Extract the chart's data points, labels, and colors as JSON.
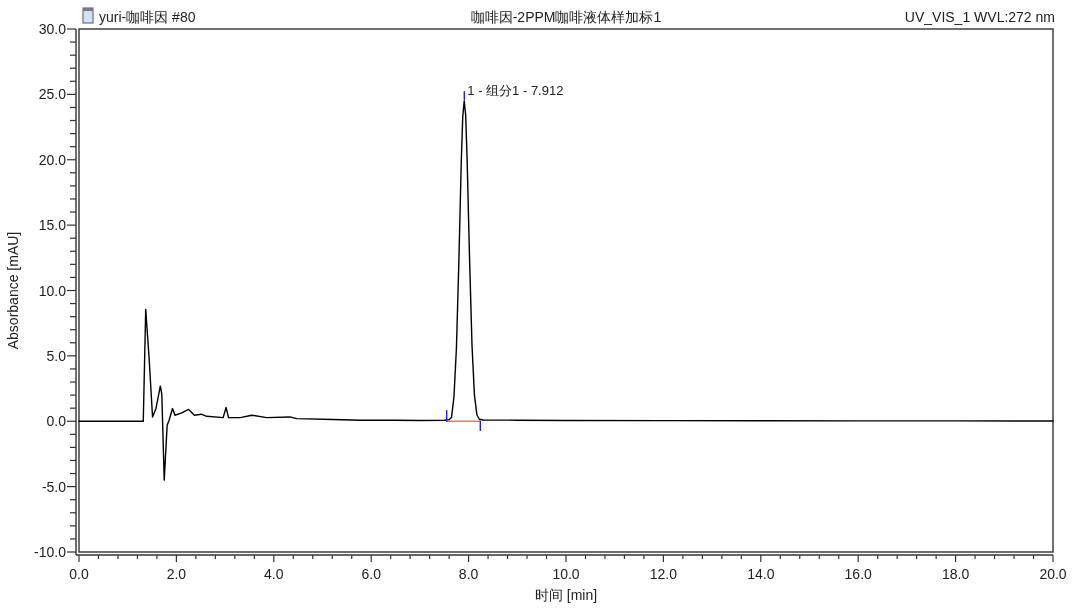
{
  "chart_data": {
    "type": "line",
    "title": "咖啡因-2PPM咖啡液体样加标1",
    "subtitle": "yuri-咖啡因 #80",
    "annotations": [
      "UV_VIS_1 WVL:272 nm",
      {
        "text": "1 - 组分1 - 7.912",
        "x": 7.912,
        "y": 25.0
      }
    ],
    "xlabel": "时间 [min]",
    "ylabel": "Absorbance [mAU]",
    "xlim": [
      0,
      20
    ],
    "ylim": [
      -10,
      30
    ],
    "xticks": [
      {
        "value": 0,
        "label": "0.0"
      },
      {
        "value": 0.4,
        "label": null
      },
      {
        "value": 0.8,
        "label": null
      },
      {
        "value": 1.2,
        "label": null
      },
      {
        "value": 1.6,
        "label": null
      },
      {
        "value": 2,
        "label": "2.0"
      },
      {
        "value": 2.4,
        "label": null
      },
      {
        "value": 2.8,
        "label": null
      },
      {
        "value": 3.2,
        "label": null
      },
      {
        "value": 3.6,
        "label": null
      },
      {
        "value": 4,
        "label": "4.0"
      },
      {
        "value": 4.4,
        "label": null
      },
      {
        "value": 4.8,
        "label": null
      },
      {
        "value": 5.2,
        "label": null
      },
      {
        "value": 5.6,
        "label": null
      },
      {
        "value": 6,
        "label": "6.0"
      },
      {
        "value": 6.4,
        "label": null
      },
      {
        "value": 6.8,
        "label": null
      },
      {
        "value": 7.2,
        "label": null
      },
      {
        "value": 7.6,
        "label": null
      },
      {
        "value": 8,
        "label": "8.0"
      },
      {
        "value": 8.4,
        "label": null
      },
      {
        "value": 8.8,
        "label": null
      },
      {
        "value": 9.2,
        "label": null
      },
      {
        "value": 9.6,
        "label": null
      },
      {
        "value": 10,
        "label": "10.0"
      },
      {
        "value": 10.4,
        "label": null
      },
      {
        "value": 10.8,
        "label": null
      },
      {
        "value": 11.2,
        "label": null
      },
      {
        "value": 11.6,
        "label": null
      },
      {
        "value": 12,
        "label": "12.0"
      },
      {
        "value": 12.4,
        "label": null
      },
      {
        "value": 12.8,
        "label": null
      },
      {
        "value": 13.2,
        "label": null
      },
      {
        "value": 13.6,
        "label": null
      },
      {
        "value": 14,
        "label": "14.0"
      },
      {
        "value": 14.4,
        "label": null
      },
      {
        "value": 14.8,
        "label": null
      },
      {
        "value": 15.2,
        "label": null
      },
      {
        "value": 15.6,
        "label": null
      },
      {
        "value": 16,
        "label": "16.0"
      },
      {
        "value": 16.4,
        "label": null
      },
      {
        "value": 16.8,
        "label": null
      },
      {
        "value": 17.2,
        "label": null
      },
      {
        "value": 17.6,
        "label": null
      },
      {
        "value": 18,
        "label": "18.0"
      },
      {
        "value": 18.4,
        "label": null
      },
      {
        "value": 18.8,
        "label": null
      },
      {
        "value": 19.2,
        "label": null
      },
      {
        "value": 19.6,
        "label": null
      },
      {
        "value": 20,
        "label": "20.0"
      }
    ],
    "yticks": [
      {
        "value": -10,
        "label": "-10.0"
      },
      {
        "value": -9,
        "label": null
      },
      {
        "value": -8,
        "label": null
      },
      {
        "value": -7,
        "label": null
      },
      {
        "value": -6,
        "label": null
      },
      {
        "value": -5,
        "label": "-5.0"
      },
      {
        "value": -4,
        "label": null
      },
      {
        "value": -3,
        "label": null
      },
      {
        "value": -2,
        "label": null
      },
      {
        "value": -1,
        "label": null
      },
      {
        "value": 0,
        "label": "0.0"
      },
      {
        "value": 1,
        "label": null
      },
      {
        "value": 2,
        "label": null
      },
      {
        "value": 3,
        "label": null
      },
      {
        "value": 4,
        "label": null
      },
      {
        "value": 5,
        "label": "5.0"
      },
      {
        "value": 6,
        "label": null
      },
      {
        "value": 7,
        "label": null
      },
      {
        "value": 8,
        "label": null
      },
      {
        "value": 9,
        "label": null
      },
      {
        "value": 10,
        "label": "10.0"
      },
      {
        "value": 11,
        "label": null
      },
      {
        "value": 12,
        "label": null
      },
      {
        "value": 13,
        "label": null
      },
      {
        "value": 14,
        "label": null
      },
      {
        "value": 15,
        "label": "15.0"
      },
      {
        "value": 16,
        "label": null
      },
      {
        "value": 17,
        "label": null
      },
      {
        "value": 18,
        "label": null
      },
      {
        "value": 19,
        "label": null
      },
      {
        "value": 20,
        "label": "20.0"
      },
      {
        "value": 21,
        "label": null
      },
      {
        "value": 22,
        "label": null
      },
      {
        "value": 23,
        "label": null
      },
      {
        "value": 24,
        "label": null
      },
      {
        "value": 25,
        "label": "25.0"
      },
      {
        "value": 26,
        "label": null
      },
      {
        "value": 27,
        "label": null
      },
      {
        "value": 28,
        "label": null
      },
      {
        "value": 29,
        "label": null
      },
      {
        "value": 30,
        "label": "30.0"
      }
    ],
    "line_style": "solid",
    "series": [
      {
        "color": "#000000",
        "x": [
          0,
          1.0,
          1.32,
          1.37,
          1.44,
          1.51,
          1.58,
          1.67,
          1.7,
          1.75,
          1.81,
          1.85,
          1.92,
          1.97,
          2.11,
          2.25,
          2.37,
          2.51,
          2.62,
          2.96,
          3.02,
          3.07,
          3.31,
          3.55,
          3.85,
          4.33,
          4.47,
          5.22,
          5.77,
          6.5,
          7.0,
          7.5,
          7.6,
          7.65,
          7.7,
          7.75,
          7.8,
          7.85,
          7.88,
          7.91,
          7.94,
          7.97,
          8.02,
          8.07,
          8.12,
          8.17,
          8.22,
          8.3,
          9.0,
          10.0,
          12.0,
          14.0,
          16.0,
          18.0,
          20.0
        ],
        "values": [
          0,
          0,
          0,
          8.55,
          4.8,
          0.33,
          0.97,
          2.68,
          2.1,
          -4.5,
          -0.3,
          0.08,
          0.97,
          0.46,
          0.64,
          0.9,
          0.46,
          0.54,
          0.38,
          0.28,
          1.05,
          0.28,
          0.28,
          0.46,
          0.28,
          0.33,
          0.2,
          0.13,
          0.08,
          0.08,
          0.06,
          0.08,
          0.12,
          0.3,
          1.9,
          5.6,
          12.2,
          19.9,
          23.3,
          24.5,
          23.4,
          20.0,
          12.4,
          5.8,
          2.0,
          0.5,
          0.15,
          0.1,
          0.08,
          0.06,
          0.05,
          0.04,
          0.03,
          0.03,
          0.02
        ]
      },
      {
        "color": "#ff6f6f",
        "x": [
          7.55,
          8.24
        ],
        "values": [
          0.0,
          0.0
        ]
      },
      {
        "color": "#1a1aff",
        "x": [
          7.55,
          7.55
        ],
        "values": [
          0.0,
          0.8
        ]
      },
      {
        "color": "#1a1aff",
        "x": [
          7.912,
          7.912
        ],
        "values": [
          24.6,
          25.2
        ]
      },
      {
        "color": "#1a1aff",
        "x": [
          8.24,
          8.24
        ],
        "values": [
          0.0,
          -0.7
        ]
      }
    ]
  }
}
